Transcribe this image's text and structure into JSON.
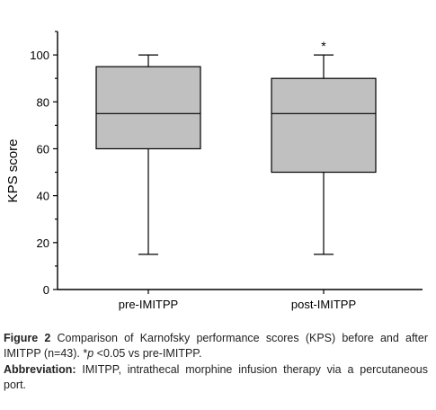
{
  "chart_data": {
    "type": "box",
    "categories": [
      "pre-IMITPP",
      "post-IMITPP"
    ],
    "boxes": [
      {
        "category": "pre-IMITPP",
        "min": 15,
        "q1": 60,
        "median": 75,
        "q3": 95,
        "max": 100,
        "annotation": ""
      },
      {
        "category": "post-IMITPP",
        "min": 15,
        "q1": 50,
        "median": 75,
        "q3": 90,
        "max": 100,
        "annotation": "*"
      }
    ],
    "xlabel": "",
    "ylabel": "KPS score",
    "ylim": [
      0,
      110
    ],
    "yticks": [
      0,
      20,
      40,
      60,
      80,
      100
    ],
    "grid": false,
    "box_fill": "#c0c0c0",
    "line_color": "#000000"
  },
  "caption": {
    "figure_label": "Figure 2",
    "figure_text": "Comparison of Karnofsky performance scores (KPS) before and after IMITPP (n=43). *",
    "p_symbol": "p",
    "p_text": " <0.05 vs pre-IMITPP.",
    "abbrev_label": "Abbreviation:",
    "abbrev_text": "IMITPP, intrathecal morphine infusion therapy via a percutaneous port."
  }
}
